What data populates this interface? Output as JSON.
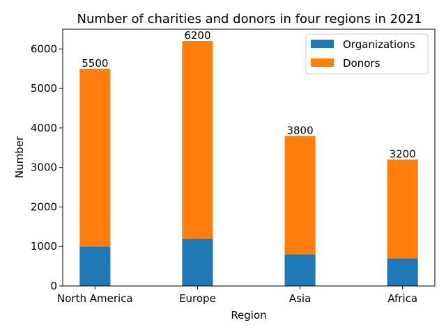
{
  "chart_data": {
    "type": "bar",
    "stacked": true,
    "title": "Number of charities and donors in four regions in 2021",
    "xlabel": "Region",
    "ylabel": "Number",
    "categories": [
      "North America",
      "Europe",
      "Asia",
      "Africa"
    ],
    "series": [
      {
        "name": "Organizations",
        "values": [
          1000,
          1200,
          800,
          700
        ],
        "color": "#1f77b4"
      },
      {
        "name": "Donors",
        "values": [
          4500,
          5000,
          3000,
          2500
        ],
        "color": "#ff7f0e"
      }
    ],
    "totals": [
      5500,
      6200,
      3800,
      3200
    ],
    "total_labels": [
      "5500",
      "6200",
      "3800",
      "3200"
    ],
    "ylim": [
      0,
      6500
    ],
    "yticks": [
      0,
      1000,
      2000,
      3000,
      4000,
      5000,
      6000
    ],
    "grid": false,
    "legend_position": "top-right"
  }
}
